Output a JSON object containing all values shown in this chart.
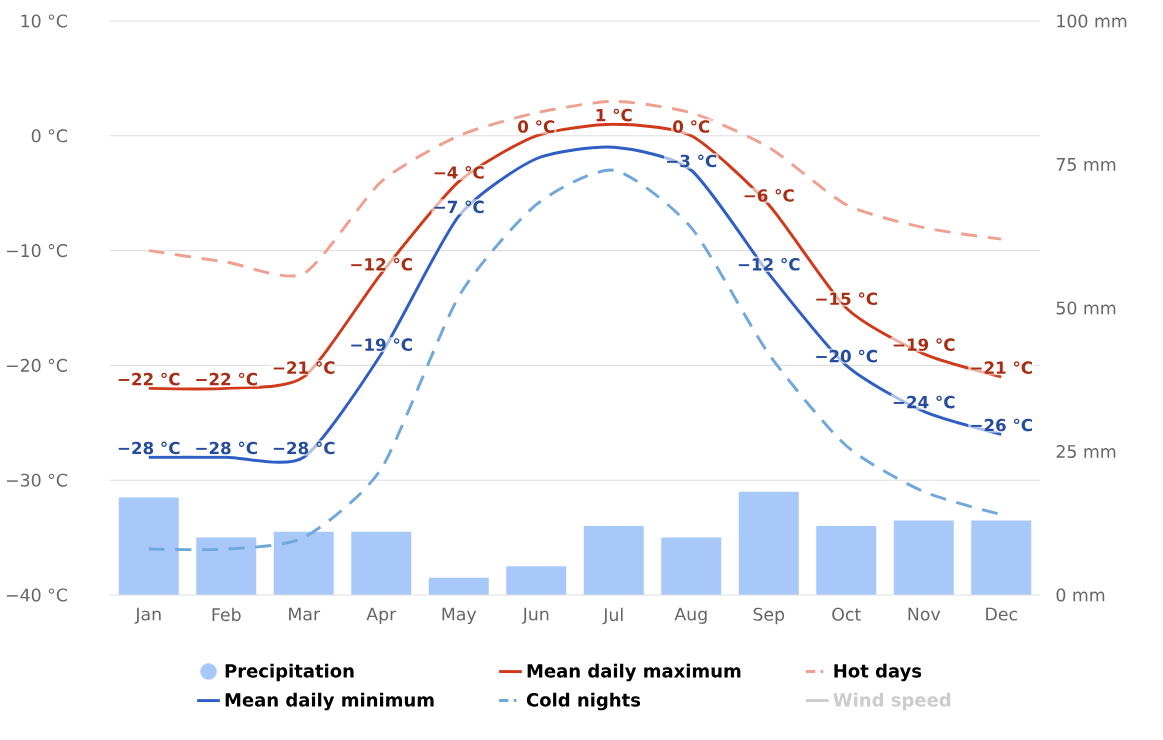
{
  "chart_data": {
    "type": "line",
    "categories": [
      "Jan",
      "Feb",
      "Mar",
      "Apr",
      "May",
      "Jun",
      "Jul",
      "Aug",
      "Sep",
      "Oct",
      "Nov",
      "Dec"
    ],
    "ylim": [
      -40,
      10
    ],
    "yticks": [
      {
        "value": -40,
        "label": "−40 °C"
      },
      {
        "value": -30,
        "label": "−30 °C"
      },
      {
        "value": -20,
        "label": "−20 °C"
      },
      {
        "value": -10,
        "label": "−10 °C"
      },
      {
        "value": 0,
        "label": "0 °C"
      },
      {
        "value": 10,
        "label": "10 °C"
      }
    ],
    "y2lim": [
      0,
      100
    ],
    "y2ticks": [
      {
        "value": 0,
        "label": "0 mm"
      },
      {
        "value": 25,
        "label": "25 mm"
      },
      {
        "value": 50,
        "label": "50 mm"
      },
      {
        "value": 75,
        "label": "75 mm"
      },
      {
        "value": 100,
        "label": "100 mm"
      }
    ],
    "grid": "y",
    "legend": "bottom",
    "series": [
      {
        "name": "Precipitation",
        "type": "bar",
        "axis": "y2",
        "color": "#a8c8fa",
        "values": [
          17,
          10,
          11,
          11,
          3,
          5,
          12,
          10,
          18,
          12,
          13,
          13
        ]
      },
      {
        "name": "Mean daily maximum",
        "color": "#d03a1a",
        "line_style": "solid",
        "values": [
          -22,
          -22,
          -21,
          -12,
          -4,
          0,
          1,
          0,
          -6,
          -15,
          -19,
          -21
        ],
        "value_labels": [
          "−22 °C",
          "−22 °C",
          "−21 °C",
          "−12 °C",
          "−4 °C",
          "0 °C",
          "1 °C",
          "0 °C",
          "−6 °C",
          "−15 °C",
          "−19 °C",
          "−21 °C"
        ]
      },
      {
        "name": "Hot days",
        "color": "#f0a090",
        "line_style": "dashed",
        "values": [
          -10,
          -11,
          -12,
          -4,
          0,
          2,
          3,
          2,
          -1,
          -6,
          -8,
          -9
        ]
      },
      {
        "name": "Mean daily minimum",
        "color": "#2f5fc4",
        "line_style": "solid",
        "values": [
          -28,
          -28,
          -28,
          -19,
          -7,
          -2,
          -1,
          -3,
          -12,
          -20,
          -24,
          -26
        ],
        "value_labels": [
          "−28 °C",
          "−28 °C",
          "−28 °C",
          "−19 °C",
          "−7 °C",
          null,
          null,
          "−3 °C",
          "−12 °C",
          "−20 °C",
          "−24 °C",
          "−26 °C"
        ]
      },
      {
        "name": "Cold nights",
        "color": "#70a8dc",
        "line_style": "dashed",
        "values": [
          -36,
          -36,
          -35,
          -29,
          -14,
          -6,
          -3,
          -8,
          -19,
          -27,
          -31,
          -33
        ]
      },
      {
        "name": "Wind speed",
        "color": "#cccccc",
        "line_style": "solid",
        "values": [
          null,
          null,
          null,
          null,
          null,
          null,
          null,
          null,
          null,
          null,
          null,
          null
        ]
      }
    ]
  }
}
